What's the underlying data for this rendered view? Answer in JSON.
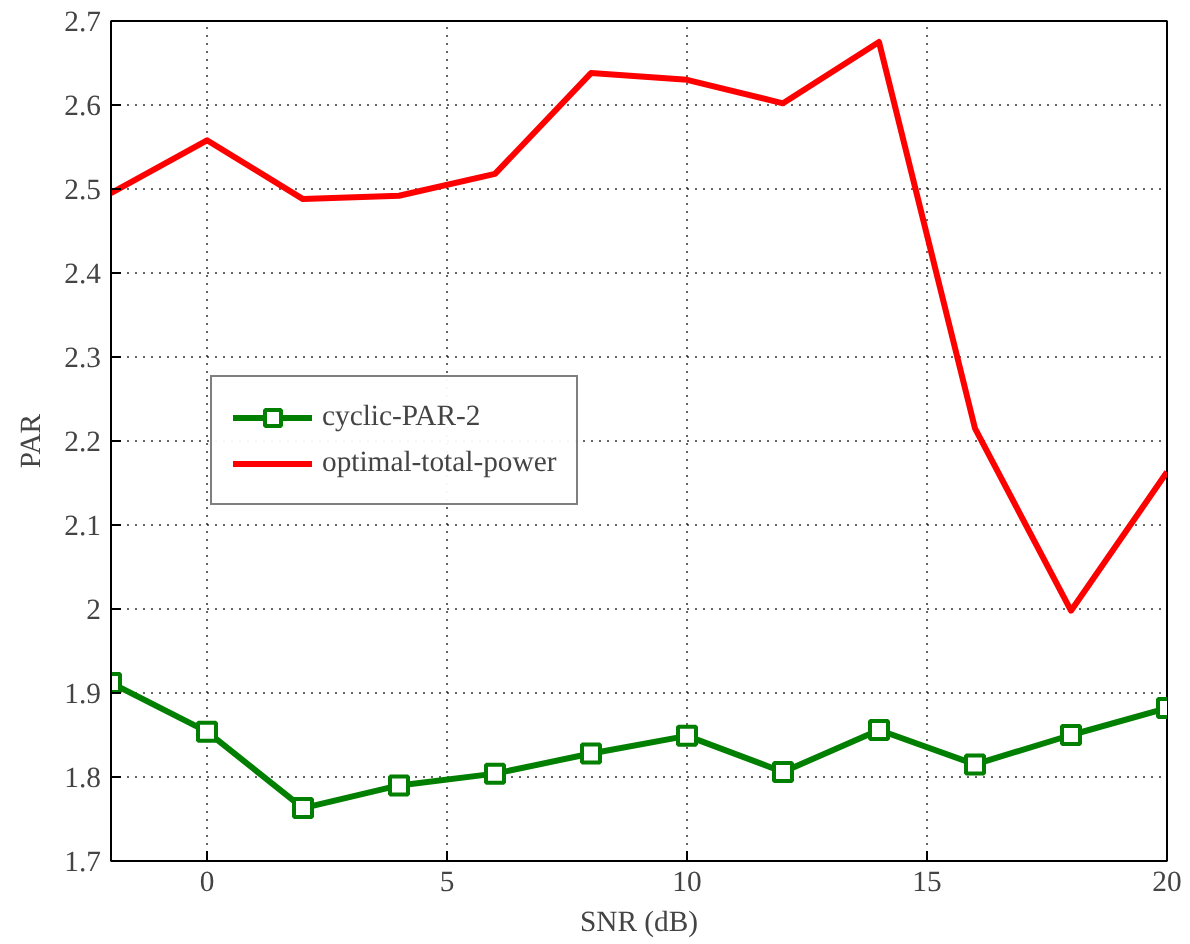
{
  "chart_data": {
    "type": "line",
    "xlabel": "SNR (dB)",
    "ylabel": "PAR",
    "x": [
      -2,
      0,
      2,
      4,
      6,
      8,
      10,
      12,
      14,
      16,
      18,
      20
    ],
    "series": [
      {
        "name": "cyclic-PAR-2",
        "color": "#007f00",
        "marker": "square",
        "values": [
          1.912,
          1.854,
          1.763,
          1.79,
          1.804,
          1.828,
          1.849,
          1.806,
          1.856,
          1.815,
          1.85,
          1.882
        ]
      },
      {
        "name": "optimal-total-power",
        "color": "#ff0000",
        "marker": "none",
        "values": [
          2.495,
          2.558,
          2.488,
          2.492,
          2.518,
          2.638,
          2.63,
          2.602,
          2.675,
          2.215,
          1.998,
          2.163
        ]
      }
    ],
    "xlim": [
      -2,
      20
    ],
    "ylim": [
      1.7,
      2.7
    ],
    "xticks": [
      0,
      5,
      10,
      15,
      20
    ],
    "yticks": [
      1.7,
      1.8,
      1.9,
      2,
      2.1,
      2.2,
      2.3,
      2.4,
      2.5,
      2.6,
      2.7
    ],
    "grid": true,
    "legend": "left",
    "line_style": "solid"
  }
}
